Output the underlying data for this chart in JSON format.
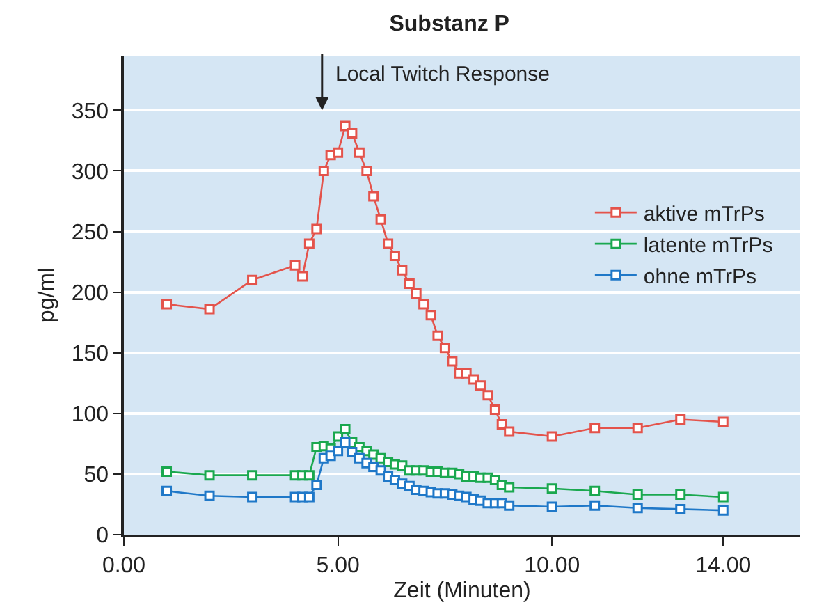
{
  "chart_data": {
    "type": "line",
    "title": "Substanz P",
    "xlabel": "Zeit (Minuten)",
    "ylabel": "pg/ml",
    "x": [
      1,
      2,
      3,
      4,
      4.17,
      4.33,
      4.5,
      4.67,
      4.83,
      5,
      5.17,
      5.33,
      5.5,
      5.67,
      5.83,
      6,
      6.17,
      6.33,
      6.5,
      6.67,
      6.83,
      7,
      7.17,
      7.33,
      7.5,
      7.67,
      7.83,
      8,
      8.17,
      8.33,
      8.5,
      8.67,
      8.83,
      9,
      10,
      11,
      12,
      13,
      14
    ],
    "series": [
      {
        "name": "aktive mTrPs",
        "color": "#e4534b",
        "values": [
          190,
          186,
          210,
          222,
          213,
          240,
          252,
          300,
          313,
          315,
          337,
          331,
          315,
          300,
          279,
          260,
          240,
          230,
          218,
          207,
          199,
          190,
          181,
          164,
          154,
          143,
          133,
          133,
          128,
          123,
          115,
          103,
          91,
          85,
          81,
          88,
          88,
          95,
          93
        ]
      },
      {
        "name": "latente mTrPs",
        "color": "#1aa84f",
        "values": [
          52,
          49,
          49,
          49,
          49,
          49,
          72,
          73,
          71,
          81,
          87,
          76,
          72,
          69,
          66,
          63,
          60,
          58,
          57,
          53,
          53,
          53,
          52,
          52,
          51,
          51,
          50,
          48,
          48,
          47,
          47,
          45,
          41,
          39,
          38,
          36,
          33,
          33,
          31
        ]
      },
      {
        "name": "ohne mTrPs",
        "color": "#1f78c8",
        "values": [
          36,
          32,
          31,
          31,
          31,
          31,
          41,
          63,
          65,
          69,
          76,
          68,
          63,
          59,
          56,
          53,
          48,
          45,
          42,
          40,
          37,
          36,
          35,
          34,
          34,
          33,
          32,
          31,
          29,
          28,
          26,
          26,
          26,
          24,
          23,
          24,
          22,
          21,
          20
        ]
      }
    ],
    "annotations": [
      "Local Twitch Response"
    ],
    "xlim": [
      0,
      15.8
    ],
    "ylim": [
      0,
      395
    ],
    "xticks": [
      {
        "value": 0,
        "label": "0.00"
      },
      {
        "value": 5,
        "label": "5.00"
      },
      {
        "value": 10,
        "label": "10.00"
      },
      {
        "value": 14,
        "label": "14.00"
      }
    ],
    "yticks": [
      0,
      50,
      100,
      150,
      200,
      250,
      300,
      350
    ],
    "grid": "y",
    "legend": "right",
    "marker": "square",
    "line_style": "solid"
  }
}
